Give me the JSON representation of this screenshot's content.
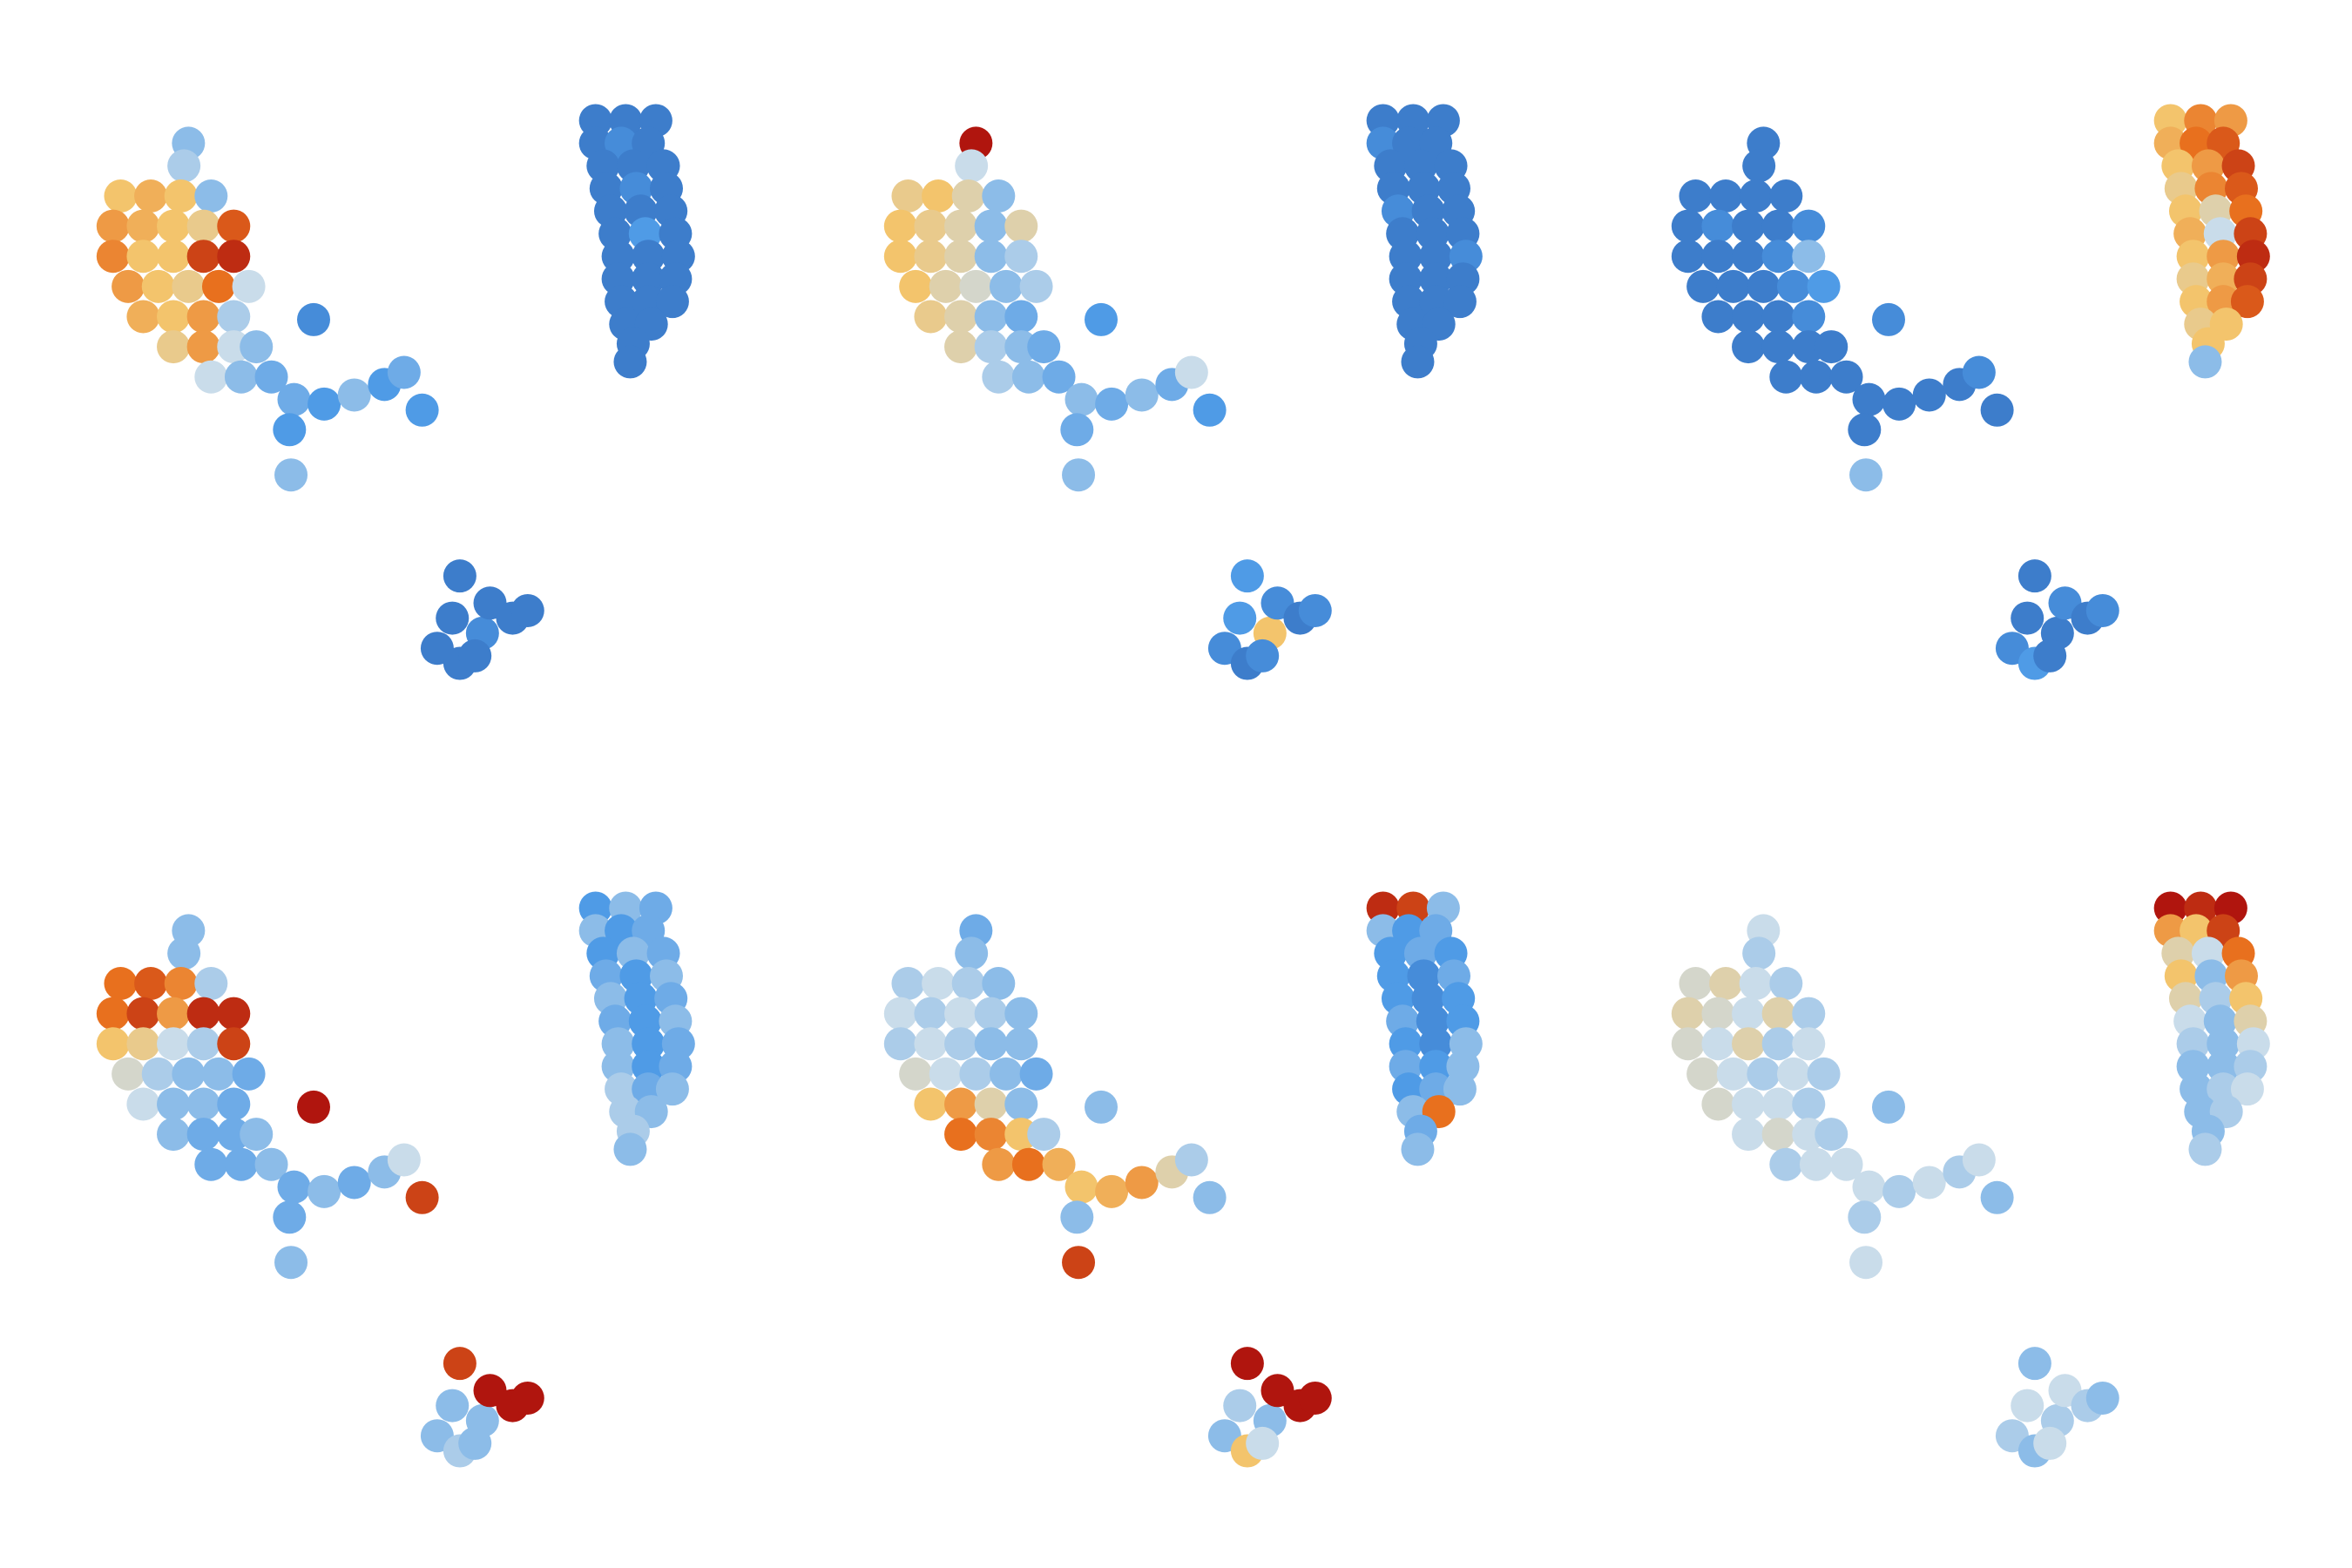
{
  "chart_data": {
    "type": "scatter",
    "x": [
      395,
      415,
      435,
      395,
      412,
      430,
      400,
      420,
      440,
      402,
      422,
      442,
      405,
      425,
      445,
      408,
      428,
      448,
      410,
      430,
      450,
      410,
      430,
      448,
      412,
      430,
      446,
      415,
      432,
      420,
      125,
      122,
      80,
      100,
      120,
      140,
      75,
      95,
      115,
      135,
      155,
      75,
      95,
      115,
      135,
      155,
      85,
      105,
      125,
      145,
      165,
      95,
      115,
      135,
      155,
      115,
      135,
      155,
      170,
      140,
      160,
      180,
      195,
      215,
      235,
      255,
      268,
      280,
      192,
      193,
      208,
      290,
      300,
      305,
      320,
      325,
      340,
      350,
      315,
      305,
      418
    ],
    "y": [
      80,
      80,
      80,
      95,
      95,
      95,
      110,
      110,
      110,
      125,
      125,
      125,
      140,
      140,
      140,
      155,
      155,
      155,
      170,
      170,
      170,
      185,
      185,
      185,
      200,
      200,
      200,
      215,
      215,
      228,
      95,
      110,
      130,
      130,
      130,
      130,
      150,
      150,
      150,
      150,
      150,
      170,
      170,
      170,
      170,
      170,
      190,
      190,
      190,
      190,
      190,
      210,
      210,
      210,
      210,
      230,
      230,
      230,
      230,
      250,
      250,
      250,
      265,
      268,
      262,
      255,
      247,
      272,
      285,
      315,
      212,
      430,
      410,
      440,
      420,
      400,
      410,
      405,
      435,
      382,
      240
    ],
    "xlim": [
      0,
      520
    ],
    "ylim": [
      0,
      520
    ],
    "vlim": [
      0,
      1
    ],
    "colormap": [
      "#2b5fb0",
      "#4f9be6",
      "#c9dcea",
      "#f3c46c",
      "#e8701e",
      "#b0150e"
    ],
    "panels": [
      {
        "values": [
          0.1,
          0.1,
          0.1,
          0.1,
          0.15,
          0.1,
          0.1,
          0.1,
          0.1,
          0.1,
          0.15,
          0.1,
          0.1,
          0.1,
          0.1,
          0.1,
          0.2,
          0.1,
          0.1,
          0.1,
          0.1,
          0.1,
          0.1,
          0.1,
          0.1,
          0.1,
          0.1,
          0.1,
          0.1,
          0.1,
          0.3,
          0.35,
          0.6,
          0.65,
          0.6,
          0.3,
          0.7,
          0.65,
          0.6,
          0.55,
          0.85,
          0.75,
          0.6,
          0.6,
          0.9,
          0.95,
          0.7,
          0.6,
          0.55,
          0.8,
          0.4,
          0.65,
          0.6,
          0.7,
          0.35,
          0.55,
          0.7,
          0.4,
          0.3,
          0.4,
          0.3,
          0.25,
          0.25,
          0.2,
          0.3,
          0.2,
          0.25,
          0.2,
          0.2,
          0.3,
          0.15,
          0.1,
          0.1,
          0.1,
          0.15,
          0.1,
          0.1,
          0.1,
          0.1,
          0.1,
          0.1
        ]
      },
      {
        "values": [
          0.1,
          0.1,
          0.1,
          0.15,
          0.1,
          0.1,
          0.1,
          0.1,
          0.1,
          0.1,
          0.1,
          0.1,
          0.15,
          0.1,
          0.1,
          0.1,
          0.1,
          0.1,
          0.1,
          0.1,
          0.15,
          0.1,
          0.1,
          0.1,
          0.1,
          0.1,
          0.1,
          0.1,
          0.1,
          0.1,
          1,
          0.4,
          0.55,
          0.6,
          0.5,
          0.3,
          0.6,
          0.55,
          0.5,
          0.3,
          0.5,
          0.6,
          0.55,
          0.5,
          0.3,
          0.35,
          0.6,
          0.5,
          0.45,
          0.3,
          0.35,
          0.55,
          0.5,
          0.3,
          0.25,
          0.5,
          0.35,
          0.3,
          0.25,
          0.35,
          0.3,
          0.25,
          0.3,
          0.25,
          0.3,
          0.25,
          0.4,
          0.2,
          0.25,
          0.3,
          0.2,
          0.15,
          0.2,
          0.1,
          0.6,
          0.15,
          0.1,
          0.15,
          0.15,
          0.2,
          0.1
        ]
      },
      {
        "values": [
          0.6,
          0.75,
          0.7,
          0.65,
          0.8,
          0.85,
          0.6,
          0.7,
          0.9,
          0.55,
          0.75,
          0.85,
          0.6,
          0.5,
          0.8,
          0.65,
          0.4,
          0.9,
          0.6,
          0.7,
          0.95,
          0.55,
          0.65,
          0.9,
          0.6,
          0.7,
          0.85,
          0.55,
          0.6,
          0.6,
          0.1,
          0.1,
          0.1,
          0.1,
          0.1,
          0.1,
          0.1,
          0.15,
          0.1,
          0.1,
          0.15,
          0.1,
          0.1,
          0.1,
          0.15,
          0.3,
          0.1,
          0.1,
          0.1,
          0.15,
          0.2,
          0.1,
          0.1,
          0.1,
          0.15,
          0.1,
          0.1,
          0.1,
          0.1,
          0.1,
          0.1,
          0.1,
          0.1,
          0.1,
          0.1,
          0.1,
          0.15,
          0.1,
          0.1,
          0.3,
          0.15,
          0.15,
          0.1,
          0.2,
          0.1,
          0.15,
          0.1,
          0.15,
          0.1,
          0.1,
          0.3
        ]
      },
      {
        "values": [
          0.2,
          0.3,
          0.25,
          0.3,
          0.2,
          0.25,
          0.2,
          0.3,
          0.25,
          0.25,
          0.2,
          0.3,
          0.3,
          0.2,
          0.25,
          0.25,
          0.2,
          0.3,
          0.3,
          0.2,
          0.25,
          0.3,
          0.2,
          0.25,
          0.35,
          0.25,
          0.3,
          0.35,
          0.3,
          0.35,
          0.3,
          0.3,
          0.8,
          0.85,
          0.75,
          0.35,
          0.8,
          0.9,
          0.7,
          0.95,
          0.95,
          0.6,
          0.55,
          0.4,
          0.35,
          0.9,
          0.45,
          0.35,
          0.3,
          0.3,
          0.25,
          0.4,
          0.3,
          0.3,
          0.25,
          0.3,
          0.25,
          0.25,
          0.3,
          0.25,
          0.25,
          0.3,
          0.25,
          0.3,
          0.25,
          0.3,
          0.4,
          0.9,
          0.25,
          0.3,
          1,
          0.3,
          0.3,
          0.35,
          0.3,
          1,
          1,
          1,
          0.3,
          0.9,
          0.3
        ]
      },
      {
        "values": [
          0.95,
          0.9,
          0.3,
          0.3,
          0.2,
          0.25,
          0.2,
          0.25,
          0.2,
          0.2,
          0.15,
          0.25,
          0.2,
          0.15,
          0.2,
          0.25,
          0.15,
          0.2,
          0.2,
          0.15,
          0.3,
          0.25,
          0.2,
          0.3,
          0.2,
          0.25,
          0.3,
          0.3,
          0.8,
          0.25,
          0.25,
          0.3,
          0.35,
          0.4,
          0.35,
          0.3,
          0.4,
          0.35,
          0.4,
          0.35,
          0.3,
          0.35,
          0.4,
          0.35,
          0.3,
          0.3,
          0.45,
          0.4,
          0.35,
          0.3,
          0.25,
          0.6,
          0.7,
          0.5,
          0.3,
          0.8,
          0.75,
          0.6,
          0.35,
          0.7,
          0.8,
          0.65,
          0.6,
          0.65,
          0.7,
          0.5,
          0.35,
          0.3,
          0.3,
          0.9,
          0.3,
          0.3,
          0.35,
          0.6,
          0.3,
          1,
          1,
          1,
          0.4,
          1,
          0.3
        ]
      },
      {
        "values": [
          1,
          0.95,
          1,
          0.7,
          0.6,
          0.9,
          0.5,
          0.4,
          0.8,
          0.6,
          0.3,
          0.7,
          0.5,
          0.35,
          0.6,
          0.4,
          0.3,
          0.5,
          0.35,
          0.3,
          0.4,
          0.3,
          0.3,
          0.35,
          0.3,
          0.35,
          0.4,
          0.3,
          0.35,
          0.3,
          0.4,
          0.35,
          0.45,
          0.5,
          0.4,
          0.35,
          0.5,
          0.45,
          0.4,
          0.5,
          0.35,
          0.45,
          0.4,
          0.5,
          0.35,
          0.4,
          0.45,
          0.4,
          0.35,
          0.4,
          0.35,
          0.45,
          0.4,
          0.4,
          0.35,
          0.4,
          0.45,
          0.4,
          0.35,
          0.35,
          0.4,
          0.4,
          0.4,
          0.35,
          0.4,
          0.35,
          0.4,
          0.3,
          0.35,
          0.4,
          0.3,
          0.35,
          0.4,
          0.3,
          0.35,
          0.4,
          0.35,
          0.3,
          0.4,
          0.3,
          0.35
        ]
      }
    ]
  }
}
